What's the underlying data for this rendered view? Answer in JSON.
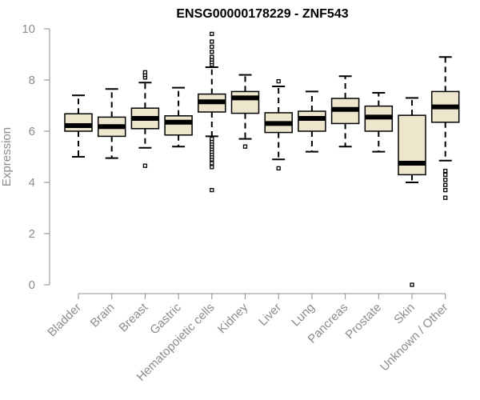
{
  "chart_data": {
    "type": "boxplot",
    "title": "ENSG00000178229 - ZNF543",
    "xlabel": "",
    "ylabel": "Expression",
    "ylim": [
      0,
      10
    ],
    "yticks": [
      0,
      2,
      4,
      6,
      8,
      10
    ],
    "grid": false,
    "legend": "none",
    "colors": {
      "box_fill": "#ede6cc",
      "box_stroke": "#000000",
      "median": "#000000",
      "axis": "#8c8c8c",
      "tick_label": "#8c8c8c",
      "title": "#000000"
    },
    "categories": [
      "Bladder",
      "Brain",
      "Breast",
      "Gastric",
      "Hematopoietic cells",
      "Kidney",
      "Liver",
      "Lung",
      "Pancreas",
      "Prostate",
      "Skin",
      "Unknown / Other"
    ],
    "boxes": [
      {
        "category": "Bladder",
        "whisker_low": 5.0,
        "q1": 6.0,
        "median": 6.22,
        "q3": 6.68,
        "whisker_high": 7.4,
        "outliers": []
      },
      {
        "category": "Brain",
        "whisker_low": 4.95,
        "q1": 5.8,
        "median": 6.18,
        "q3": 6.55,
        "whisker_high": 7.65,
        "outliers": []
      },
      {
        "category": "Breast",
        "whisker_low": 5.35,
        "q1": 6.1,
        "median": 6.5,
        "q3": 6.9,
        "whisker_high": 7.9,
        "outliers": [
          4.65,
          8.1,
          8.2,
          8.3
        ]
      },
      {
        "category": "Gastric",
        "whisker_low": 5.4,
        "q1": 5.85,
        "median": 6.35,
        "q3": 6.6,
        "whisker_high": 7.7,
        "outliers": []
      },
      {
        "category": "Hematopoietic cells",
        "whisker_low": 5.8,
        "q1": 6.75,
        "median": 7.15,
        "q3": 7.45,
        "whisker_high": 8.5,
        "outliers": [
          3.7,
          4.6,
          4.75,
          4.9,
          5.0,
          5.1,
          5.2,
          5.3,
          5.4,
          5.5,
          5.6,
          5.7,
          8.6,
          8.7,
          8.8,
          8.9,
          9.1,
          9.3,
          9.5,
          9.8
        ]
      },
      {
        "category": "Kidney",
        "whisker_low": 5.7,
        "q1": 6.7,
        "median": 7.3,
        "q3": 7.55,
        "whisker_high": 8.2,
        "outliers": [
          5.4
        ]
      },
      {
        "category": "Liver",
        "whisker_low": 4.9,
        "q1": 5.95,
        "median": 6.3,
        "q3": 6.72,
        "whisker_high": 7.75,
        "outliers": [
          4.55,
          7.95
        ]
      },
      {
        "category": "Lung",
        "whisker_low": 5.2,
        "q1": 6.0,
        "median": 6.5,
        "q3": 6.78,
        "whisker_high": 7.55,
        "outliers": []
      },
      {
        "category": "Pancreas",
        "whisker_low": 5.4,
        "q1": 6.3,
        "median": 6.85,
        "q3": 7.28,
        "whisker_high": 8.15,
        "outliers": []
      },
      {
        "category": "Prostate",
        "whisker_low": 5.2,
        "q1": 6.0,
        "median": 6.55,
        "q3": 6.98,
        "whisker_high": 7.5,
        "outliers": []
      },
      {
        "category": "Skin",
        "whisker_low": 4.0,
        "q1": 4.3,
        "median": 4.75,
        "q3": 6.62,
        "whisker_high": 7.3,
        "outliers": [
          0.0
        ]
      },
      {
        "category": "Unknown / Other",
        "whisker_low": 4.85,
        "q1": 6.35,
        "median": 6.95,
        "q3": 7.55,
        "whisker_high": 8.9,
        "outliers": [
          3.4,
          3.7,
          3.9,
          4.1,
          4.3,
          4.45
        ]
      }
    ]
  }
}
